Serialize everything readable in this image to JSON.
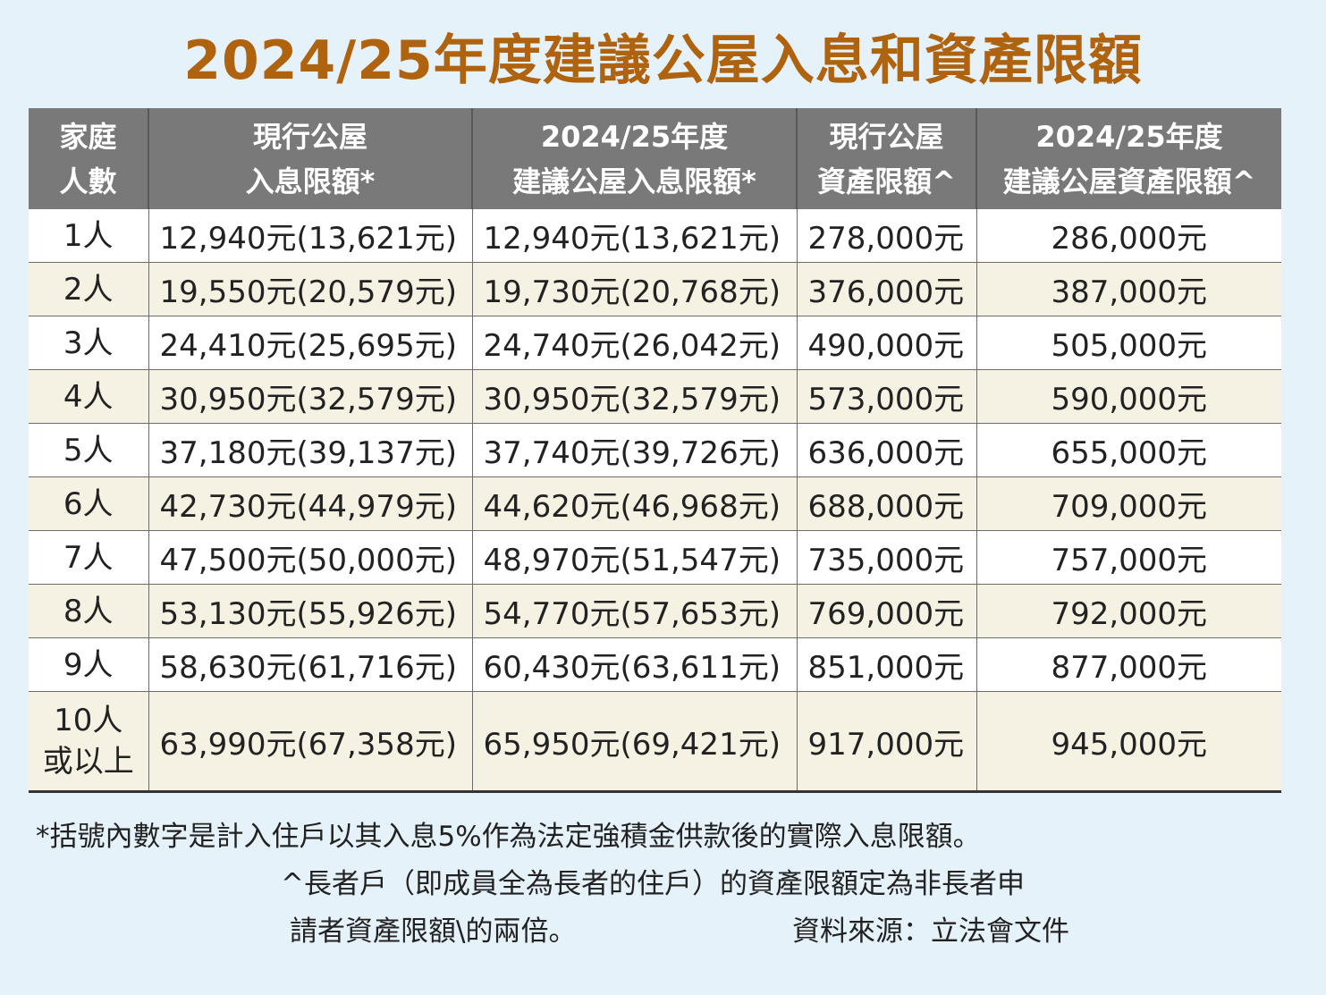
{
  "title": "2024/25年度建議公屋入息和資產限額",
  "table": {
    "headers": [
      [
        "家庭",
        "人數"
      ],
      [
        "現行公屋",
        "入息限額*"
      ],
      [
        "2024/25年度",
        "建議公屋入息限額*"
      ],
      [
        "現行公屋",
        "資產限額^"
      ],
      [
        "2024/25年度",
        "建議公屋資產限額^"
      ]
    ],
    "rows": [
      {
        "size": [
          "1人"
        ],
        "current_income": "12,940元(13,621元)",
        "proposed_income": "12,940元(13,621元)",
        "current_asset": "278,000元",
        "proposed_asset": "286,000元"
      },
      {
        "size": [
          "2人"
        ],
        "current_income": "19,550元(20,579元)",
        "proposed_income": "19,730元(20,768元)",
        "current_asset": "376,000元",
        "proposed_asset": "387,000元"
      },
      {
        "size": [
          "3人"
        ],
        "current_income": "24,410元(25,695元)",
        "proposed_income": "24,740元(26,042元)",
        "current_asset": "490,000元",
        "proposed_asset": "505,000元"
      },
      {
        "size": [
          "4人"
        ],
        "current_income": "30,950元(32,579元)",
        "proposed_income": "30,950元(32,579元)",
        "current_asset": "573,000元",
        "proposed_asset": "590,000元"
      },
      {
        "size": [
          "5人"
        ],
        "current_income": "37,180元(39,137元)",
        "proposed_income": "37,740元(39,726元)",
        "current_asset": "636,000元",
        "proposed_asset": "655,000元"
      },
      {
        "size": [
          "6人"
        ],
        "current_income": "42,730元(44,979元)",
        "proposed_income": "44,620元(46,968元)",
        "current_asset": "688,000元",
        "proposed_asset": "709,000元"
      },
      {
        "size": [
          "7人"
        ],
        "current_income": "47,500元(50,000元)",
        "proposed_income": "48,970元(51,547元)",
        "current_asset": "735,000元",
        "proposed_asset": "757,000元"
      },
      {
        "size": [
          "8人"
        ],
        "current_income": "53,130元(55,926元)",
        "proposed_income": "54,770元(57,653元)",
        "current_asset": "769,000元",
        "proposed_asset": "792,000元"
      },
      {
        "size": [
          "9人"
        ],
        "current_income": "58,630元(61,716元)",
        "proposed_income": "60,430元(63,611元)",
        "current_asset": "851,000元",
        "proposed_asset": "877,000元"
      },
      {
        "size": [
          "10人",
          "或以上"
        ],
        "current_income": "63,990元(67,358元)",
        "proposed_income": "65,950元(69,421元)",
        "current_asset": "917,000元",
        "proposed_asset": "945,000元"
      }
    ]
  },
  "footnotes": {
    "income_note": "*括號內數字是計入住戶以其入息5%作為法定強積金供款後的實際入息限額。",
    "elderly_note_line1": "^長者戶（即成員全為長者的住戶）的資產限額定為非長者申",
    "elderly_note_line2": "請者資產限額\\的兩倍。",
    "source": "資料來源：立法會文件"
  },
  "colors": {
    "background": "#e6f2fa",
    "title": "#b0630f",
    "header_bg": "#7a7979",
    "row_even": "#f5f1e3",
    "row_odd": "#ffffff"
  }
}
